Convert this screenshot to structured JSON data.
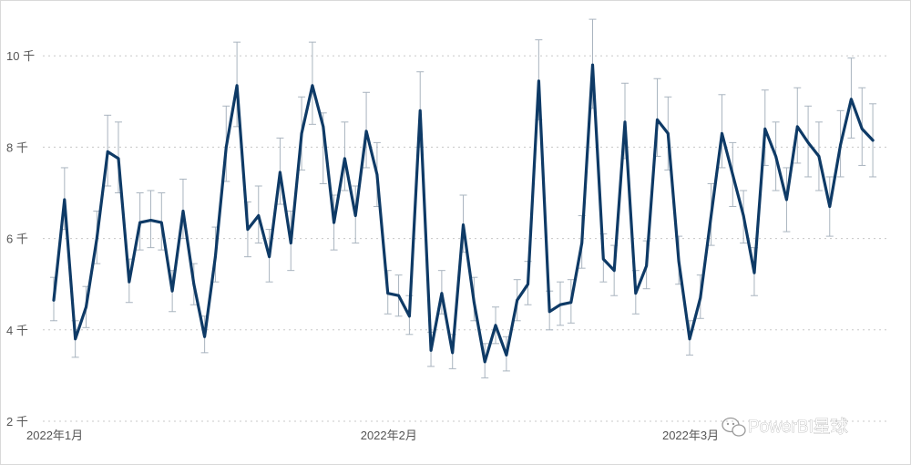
{
  "chart_data": {
    "type": "line",
    "title": "",
    "xlabel": "",
    "ylabel": "",
    "ylim": [
      2,
      11
    ],
    "yticks": [
      2,
      4,
      6,
      8,
      10
    ],
    "ytick_labels": [
      "2 千",
      "4 千",
      "6 千",
      "8 千",
      "10 千"
    ],
    "x_start": "2022-01-01",
    "x_end": "2022-03-22",
    "xticks": [
      {
        "date": "2022-01-01",
        "label": "2022年1月"
      },
      {
        "date": "2022-02-01",
        "label": "2022年2月"
      },
      {
        "date": "2022-03-01",
        "label": "2022年3月"
      }
    ],
    "grid": true,
    "legend": "none",
    "line_color": "#0e3a66",
    "error_color": "#a9b4bf",
    "series": [
      {
        "values": [
          4.65,
          6.85,
          3.8,
          4.5,
          6.0,
          7.9,
          7.75,
          5.05,
          6.35,
          6.4,
          6.35,
          4.85,
          6.6,
          5.0,
          3.85,
          5.6,
          8.0,
          9.35,
          6.2,
          6.5,
          5.6,
          7.45,
          5.9,
          8.3,
          9.35,
          8.45,
          6.35,
          7.75,
          6.5,
          8.35,
          7.4,
          4.8,
          4.75,
          4.3,
          8.8,
          3.55,
          4.8,
          3.5,
          6.3,
          4.6,
          3.3,
          4.1,
          3.45,
          4.65,
          5.0,
          9.45,
          4.4,
          4.55,
          4.6,
          5.9,
          9.8,
          5.55,
          5.3,
          8.55,
          4.8,
          5.4,
          8.6,
          8.3,
          5.5,
          3.8,
          4.7,
          6.5,
          8.3,
          7.4,
          6.5,
          5.25,
          8.4,
          7.8,
          6.85,
          8.45,
          8.1,
          7.8,
          6.7,
          8.05,
          9.05,
          8.4,
          8.15
        ],
        "upper": [
          5.15,
          7.55,
          4.2,
          4.95,
          6.6,
          8.7,
          8.55,
          5.55,
          7.0,
          7.05,
          7.0,
          5.3,
          7.3,
          5.45,
          4.3,
          6.25,
          8.9,
          10.3,
          6.8,
          7.15,
          6.2,
          8.2,
          6.6,
          9.1,
          10.3,
          8.75,
          6.95,
          8.55,
          7.15,
          9.2,
          8.1,
          5.3,
          5.2,
          4.75,
          9.65,
          3.95,
          5.3,
          3.9,
          6.95,
          5.15,
          3.7,
          4.5,
          3.85,
          5.1,
          5.5,
          10.35,
          4.85,
          5.05,
          5.1,
          6.5,
          10.8,
          6.1,
          5.85,
          9.4,
          5.3,
          5.95,
          9.5,
          9.1,
          6.05,
          4.2,
          5.2,
          7.2,
          9.15,
          8.1,
          7.05,
          5.8,
          9.25,
          8.55,
          7.55,
          9.3,
          8.9,
          8.55,
          7.35,
          8.8,
          9.95,
          9.3,
          8.95
        ],
        "lower": [
          4.2,
          6.2,
          3.4,
          4.05,
          5.45,
          7.15,
          7.0,
          4.6,
          5.75,
          5.8,
          5.75,
          4.4,
          6.0,
          4.55,
          3.5,
          5.05,
          7.25,
          8.45,
          5.6,
          5.9,
          5.05,
          6.75,
          5.3,
          7.5,
          8.5,
          7.2,
          5.75,
          7.05,
          5.9,
          7.55,
          6.7,
          4.35,
          4.3,
          3.9,
          8.0,
          3.2,
          4.35,
          3.15,
          5.7,
          4.2,
          2.95,
          3.7,
          3.1,
          4.2,
          4.55,
          8.6,
          4.0,
          4.1,
          4.15,
          5.35,
          8.85,
          5.05,
          4.75,
          7.75,
          4.35,
          4.9,
          7.8,
          7.5,
          5.0,
          3.45,
          4.25,
          5.85,
          7.55,
          6.7,
          5.9,
          4.75,
          7.6,
          7.05,
          6.15,
          7.65,
          7.35,
          7.05,
          6.05,
          7.35,
          8.2,
          7.6,
          7.35
        ]
      }
    ]
  },
  "watermark": {
    "text": "PowerBI星球",
    "icon": "wechat-icon"
  }
}
